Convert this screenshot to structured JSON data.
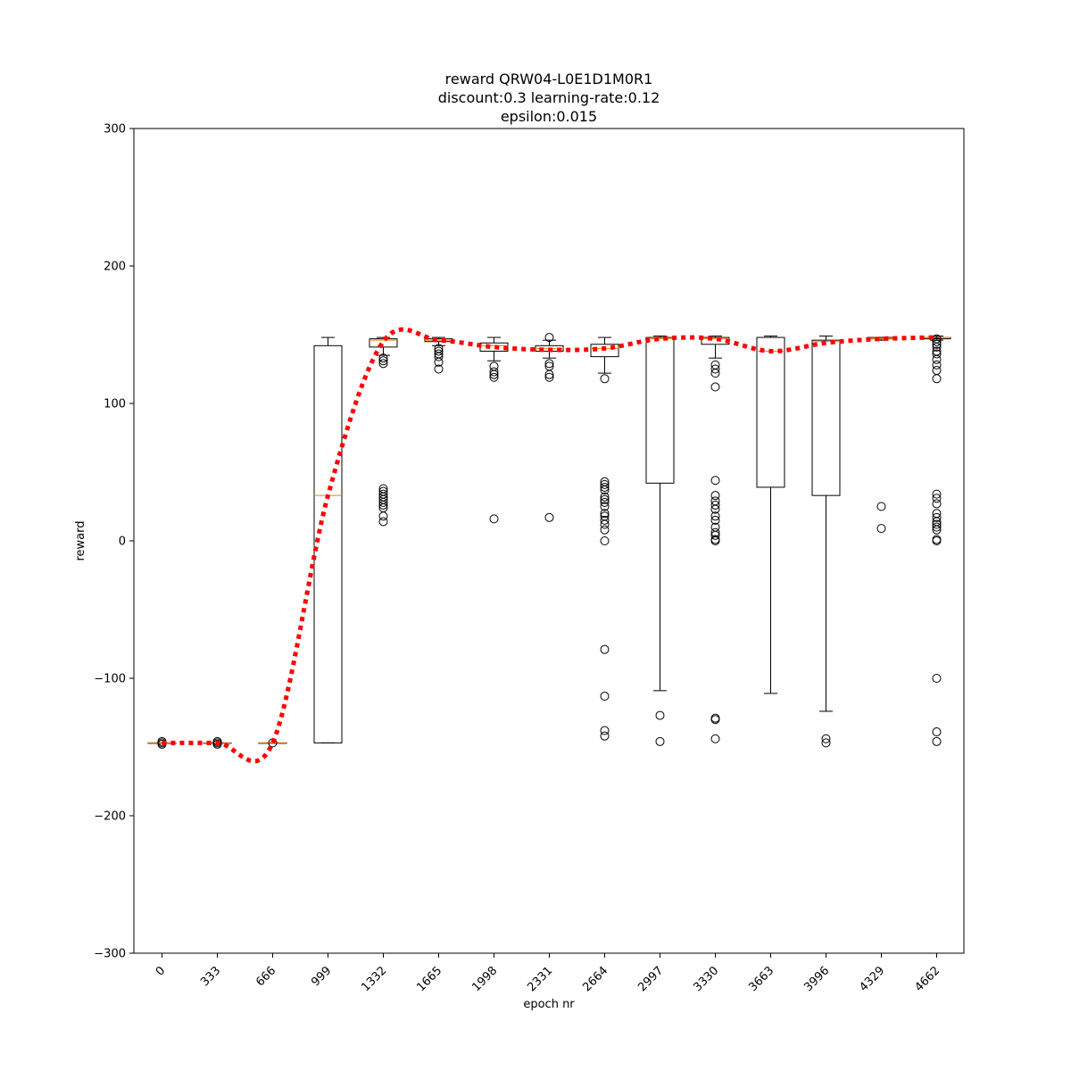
{
  "chart_data": {
    "type": "box",
    "title": [
      "reward QRW04-L0E1D1M0R1",
      "discount:0.3 learning-rate:0.12",
      "epsilon:0.015"
    ],
    "xlabel": "epoch nr",
    "ylabel": "reward",
    "ylim": [
      -300,
      300
    ],
    "yticks": [
      -300,
      -200,
      -100,
      0,
      100,
      200,
      300
    ],
    "categories": [
      "0",
      "333",
      "666",
      "999",
      "1332",
      "1665",
      "1998",
      "2331",
      "2664",
      "2997",
      "3330",
      "3663",
      "3996",
      "4329",
      "4662"
    ],
    "boxes": [
      {
        "whisker_low": -147,
        "q1": -147,
        "median": -147,
        "q3": -147,
        "whisker_high": -147,
        "outliers": [
          -146,
          -147,
          -148
        ]
      },
      {
        "whisker_low": -147,
        "q1": -147,
        "median": -147,
        "q3": -147,
        "whisker_high": -147,
        "outliers": [
          -146,
          -147,
          -148
        ]
      },
      {
        "whisker_low": -147,
        "q1": -147,
        "median": -147,
        "q3": -147,
        "whisker_high": -147,
        "outliers": [
          -147
        ]
      },
      {
        "whisker_low": -147,
        "q1": -147,
        "median": 33,
        "q3": 142,
        "whisker_high": 148,
        "outliers": []
      },
      {
        "whisker_low": 135,
        "q1": 141,
        "median": 146,
        "q3": 147,
        "whisker_high": 148,
        "outliers": [
          133,
          131,
          129,
          38,
          36,
          34,
          32,
          30,
          28,
          26,
          24,
          18,
          14
        ]
      },
      {
        "whisker_low": 142,
        "q1": 145,
        "median": 146,
        "q3": 147,
        "whisker_high": 148,
        "outliers": [
          140,
          138,
          136,
          134,
          130,
          125
        ]
      },
      {
        "whisker_low": 131,
        "q1": 138,
        "median": 142,
        "q3": 144,
        "whisker_high": 148,
        "outliers": [
          127,
          123,
          121,
          119,
          16
        ]
      },
      {
        "whisker_low": 133,
        "q1": 138,
        "median": 140,
        "q3": 142,
        "whisker_high": 146,
        "outliers": [
          148,
          129,
          127,
          121,
          119,
          17
        ]
      },
      {
        "whisker_low": 122,
        "q1": 134,
        "median": 140,
        "q3": 143,
        "whisker_high": 148,
        "outliers": [
          118,
          43,
          41,
          39,
          37,
          32,
          30,
          28,
          25,
          20,
          18,
          15,
          12,
          8,
          0,
          -79,
          -113,
          -138,
          -142
        ]
      },
      {
        "whisker_low": -109,
        "q1": 42,
        "median": 147,
        "q3": 148,
        "whisker_high": 149,
        "outliers": [
          -127,
          -146
        ]
      },
      {
        "whisker_low": 133,
        "q1": 143,
        "median": 147,
        "q3": 148,
        "whisker_high": 149,
        "outliers": [
          128,
          125,
          122,
          112,
          44,
          33,
          29,
          26,
          23,
          18,
          15,
          10,
          6,
          4,
          1,
          0,
          -129,
          -130,
          -144
        ]
      },
      {
        "whisker_low": -111,
        "q1": 39,
        "median": 138,
        "q3": 148,
        "whisker_high": 149,
        "outliers": []
      },
      {
        "whisker_low": -124,
        "q1": 33,
        "median": 145,
        "q3": 146,
        "whisker_high": 149,
        "outliers": [
          -144,
          -147
        ]
      },
      {
        "whisker_low": 146,
        "q1": 147,
        "median": 147,
        "q3": 148,
        "whisker_high": 148,
        "outliers": [
          25,
          9
        ]
      },
      {
        "whisker_low": 146,
        "q1": 147,
        "median": 148,
        "q3": 148,
        "whisker_high": 149,
        "outliers": [
          147,
          145,
          143,
          141,
          138,
          136,
          132,
          128,
          124,
          118,
          34,
          31,
          27,
          20,
          17,
          14,
          12,
          10,
          8,
          1,
          0,
          -100,
          -139,
          -146
        ]
      }
    ],
    "mean_line": {
      "style": "dotted",
      "color": "#ff0000",
      "values": [
        -147,
        -147,
        -147,
        33,
        145,
        146,
        141,
        139,
        140,
        147,
        147,
        138,
        144,
        147,
        148
      ]
    },
    "colors": {
      "box": "#000000",
      "median": "#ff7f0e",
      "mean_line": "#ff0000"
    },
    "grid": false
  }
}
